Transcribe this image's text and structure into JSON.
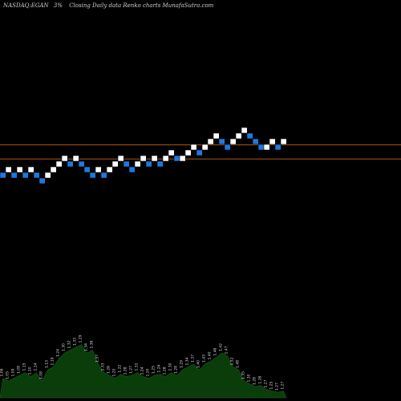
{
  "chart_data": {
    "type": "renko",
    "title": "NASDAQ:EGAN",
    "subtitle": "3%",
    "caption": "Closing Daily data Renko charts MunafaSutra.com",
    "colors": {
      "up": "#ffffff",
      "down": "#1f78e0",
      "background": "#000000",
      "volume": "#0a3d0a",
      "guide": "#c86414"
    },
    "bricks": [
      {
        "t": 0,
        "y": 0,
        "d": "down"
      },
      {
        "t": 1,
        "y": 1,
        "d": "up"
      },
      {
        "t": 2,
        "y": 0,
        "d": "down"
      },
      {
        "t": 3,
        "y": 1,
        "d": "up"
      },
      {
        "t": 4,
        "y": 0,
        "d": "down"
      },
      {
        "t": 5,
        "y": 1,
        "d": "up"
      },
      {
        "t": 6,
        "y": 0,
        "d": "down"
      },
      {
        "t": 7,
        "y": -1,
        "d": "down"
      },
      {
        "t": 8,
        "y": 0,
        "d": "up"
      },
      {
        "t": 9,
        "y": 1,
        "d": "up"
      },
      {
        "t": 10,
        "y": 2,
        "d": "up"
      },
      {
        "t": 11,
        "y": 3,
        "d": "up"
      },
      {
        "t": 12,
        "y": 2,
        "d": "down"
      },
      {
        "t": 13,
        "y": 3,
        "d": "up"
      },
      {
        "t": 14,
        "y": 2,
        "d": "down"
      },
      {
        "t": 15,
        "y": 1,
        "d": "down"
      },
      {
        "t": 16,
        "y": 0,
        "d": "down"
      },
      {
        "t": 17,
        "y": 1,
        "d": "up"
      },
      {
        "t": 18,
        "y": 0,
        "d": "down"
      },
      {
        "t": 19,
        "y": 1,
        "d": "up"
      },
      {
        "t": 20,
        "y": 2,
        "d": "up"
      },
      {
        "t": 21,
        "y": 3,
        "d": "up"
      },
      {
        "t": 22,
        "y": 2,
        "d": "down"
      },
      {
        "t": 23,
        "y": 1,
        "d": "down"
      },
      {
        "t": 24,
        "y": 2,
        "d": "up"
      },
      {
        "t": 25,
        "y": 3,
        "d": "up"
      },
      {
        "t": 26,
        "y": 2,
        "d": "down"
      },
      {
        "t": 27,
        "y": 3,
        "d": "up"
      },
      {
        "t": 28,
        "y": 2,
        "d": "down"
      },
      {
        "t": 29,
        "y": 3,
        "d": "up"
      },
      {
        "t": 30,
        "y": 4,
        "d": "up"
      },
      {
        "t": 31,
        "y": 3,
        "d": "down"
      },
      {
        "t": 32,
        "y": 3,
        "d": "up"
      },
      {
        "t": 33,
        "y": 4,
        "d": "up"
      },
      {
        "t": 34,
        "y": 5,
        "d": "up"
      },
      {
        "t": 35,
        "y": 4,
        "d": "down"
      },
      {
        "t": 36,
        "y": 5,
        "d": "up"
      },
      {
        "t": 37,
        "y": 6,
        "d": "up"
      },
      {
        "t": 38,
        "y": 7,
        "d": "up"
      },
      {
        "t": 39,
        "y": 6,
        "d": "down"
      },
      {
        "t": 40,
        "y": 5,
        "d": "down"
      },
      {
        "t": 41,
        "y": 6,
        "d": "up"
      },
      {
        "t": 42,
        "y": 7,
        "d": "up"
      },
      {
        "t": 43,
        "y": 8,
        "d": "up"
      },
      {
        "t": 44,
        "y": 7,
        "d": "down"
      },
      {
        "t": 45,
        "y": 6,
        "d": "down"
      },
      {
        "t": 46,
        "y": 5,
        "d": "down"
      },
      {
        "t": 47,
        "y": 5,
        "d": "up"
      },
      {
        "t": 48,
        "y": 6,
        "d": "up"
      },
      {
        "t": 49,
        "y": 5,
        "d": "down"
      },
      {
        "t": 50,
        "y": 6,
        "d": "up"
      }
    ],
    "reference_levels": [
      5.4,
      2.9
    ],
    "volume": [
      {
        "t": 0,
        "v": 0.35,
        "label": "1.06"
      },
      {
        "t": 1,
        "v": 0.3,
        "label": "1.05"
      },
      {
        "t": 2,
        "v": 0.35,
        "label": "1.09"
      },
      {
        "t": 3,
        "v": 0.4,
        "label": "1.08"
      },
      {
        "t": 4,
        "v": 0.45,
        "label": "1.15"
      },
      {
        "t": 5,
        "v": 0.38,
        "label": "1.10"
      },
      {
        "t": 6,
        "v": 0.45,
        "label": "1.14"
      },
      {
        "t": 7,
        "v": 0.3,
        "label": "1.08"
      },
      {
        "t": 8,
        "v": 0.5,
        "label": "1.13"
      },
      {
        "t": 9,
        "v": 0.55,
        "label": "1.19"
      },
      {
        "t": 10,
        "v": 0.7,
        "label": "1.24"
      },
      {
        "t": 11,
        "v": 0.8,
        "label": "1.30"
      },
      {
        "t": 12,
        "v": 0.85,
        "label": "1.32"
      },
      {
        "t": 13,
        "v": 0.9,
        "label": "1.33"
      },
      {
        "t": 14,
        "v": 0.95,
        "label": "1.29"
      },
      {
        "t": 15,
        "v": 0.8,
        "label": "1.34"
      },
      {
        "t": 16,
        "v": 0.85,
        "label": "1.36"
      },
      {
        "t": 17,
        "v": 0.6,
        "label": "1.37"
      },
      {
        "t": 18,
        "v": 0.45,
        "label": "1.33"
      },
      {
        "t": 19,
        "v": 0.4,
        "label": "1.26"
      },
      {
        "t": 20,
        "v": 0.35,
        "label": "1.20"
      },
      {
        "t": 21,
        "v": 0.42,
        "label": "1.22"
      },
      {
        "t": 22,
        "v": 0.38,
        "label": "1.28"
      },
      {
        "t": 23,
        "v": 0.4,
        "label": "1.27"
      },
      {
        "t": 24,
        "v": 0.45,
        "label": "1.31"
      },
      {
        "t": 25,
        "v": 0.38,
        "label": "1.24"
      },
      {
        "t": 26,
        "v": 0.35,
        "label": "1.20"
      },
      {
        "t": 27,
        "v": 0.4,
        "label": "1.25"
      },
      {
        "t": 28,
        "v": 0.42,
        "label": "1.24"
      },
      {
        "t": 29,
        "v": 0.38,
        "label": "1.28"
      },
      {
        "t": 30,
        "v": 0.45,
        "label": "1.30"
      },
      {
        "t": 31,
        "v": 0.4,
        "label": "1.28"
      },
      {
        "t": 32,
        "v": 0.5,
        "label": "1.29"
      },
      {
        "t": 33,
        "v": 0.55,
        "label": "1.34"
      },
      {
        "t": 34,
        "v": 0.6,
        "label": "1.37"
      },
      {
        "t": 35,
        "v": 0.5,
        "label": "1.40"
      },
      {
        "t": 36,
        "v": 0.6,
        "label": "1.43"
      },
      {
        "t": 37,
        "v": 0.65,
        "label": "1.40"
      },
      {
        "t": 38,
        "v": 0.72,
        "label": "1.46"
      },
      {
        "t": 39,
        "v": 0.8,
        "label": "1.42"
      },
      {
        "t": 40,
        "v": 0.75,
        "label": "1.47"
      },
      {
        "t": 41,
        "v": 0.55,
        "label": "1.52"
      },
      {
        "t": 42,
        "v": 0.5,
        "label": "1.48"
      },
      {
        "t": 43,
        "v": 0.3,
        "label": "1.35"
      },
      {
        "t": 44,
        "v": 0.25,
        "label": "1.30"
      },
      {
        "t": 45,
        "v": 0.2,
        "label": "1.28"
      },
      {
        "t": 46,
        "v": 0.22,
        "label": "1.26"
      },
      {
        "t": 47,
        "v": 0.15,
        "label": "1.27"
      },
      {
        "t": 48,
        "v": 0.12,
        "label": "1.25"
      },
      {
        "t": 49,
        "v": 0.1,
        "label": "1.27"
      },
      {
        "t": 50,
        "v": 0.12,
        "label": "1.27"
      }
    ]
  }
}
